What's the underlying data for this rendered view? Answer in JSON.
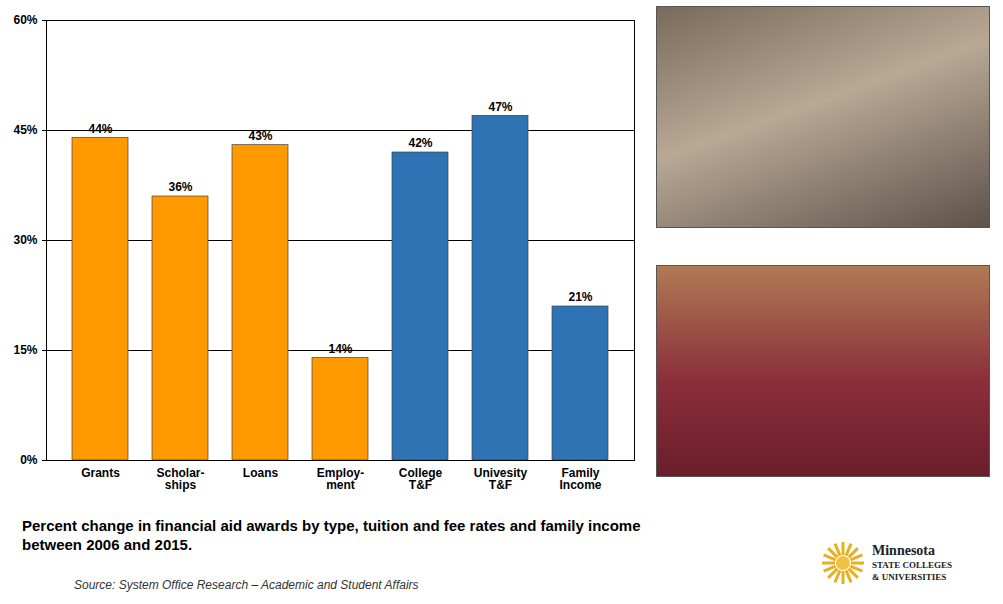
{
  "chart_data": {
    "type": "bar",
    "title": "Percent change in financial aid awards by type, tuition and fee rates and family income between 2006 and 2015.",
    "source": "Source: System Office Research – Academic and Student Affairs",
    "annotations": [
      "Minnesota",
      "STATE COLLEGES",
      "& UNIVERSITIES"
    ],
    "categories": [
      "Grants",
      "Scholar-\nships",
      "Loans",
      "Employ-\nment",
      "College\nT&F",
      "Univesity\nT&F",
      "Family\nIncome"
    ],
    "values": [
      44,
      36,
      43,
      14,
      42,
      47,
      21
    ],
    "value_labels": [
      "44%",
      "36%",
      "43%",
      "14%",
      "42%",
      "47%",
      "21%"
    ],
    "colors": [
      "#ff9900",
      "#ff9900",
      "#ff9900",
      "#ff9900",
      "#2e74b5",
      "#2e74b5",
      "#2e74b5"
    ],
    "ylim": [
      0,
      60
    ],
    "yticks": [
      {
        "value": 0,
        "label": "0%"
      },
      {
        "value": 15,
        "label": "15%"
      },
      {
        "value": 30,
        "label": "30%"
      },
      {
        "value": 45,
        "label": "45%"
      },
      {
        "value": 60,
        "label": "60%"
      }
    ],
    "grid": true,
    "data_labels": true
  }
}
